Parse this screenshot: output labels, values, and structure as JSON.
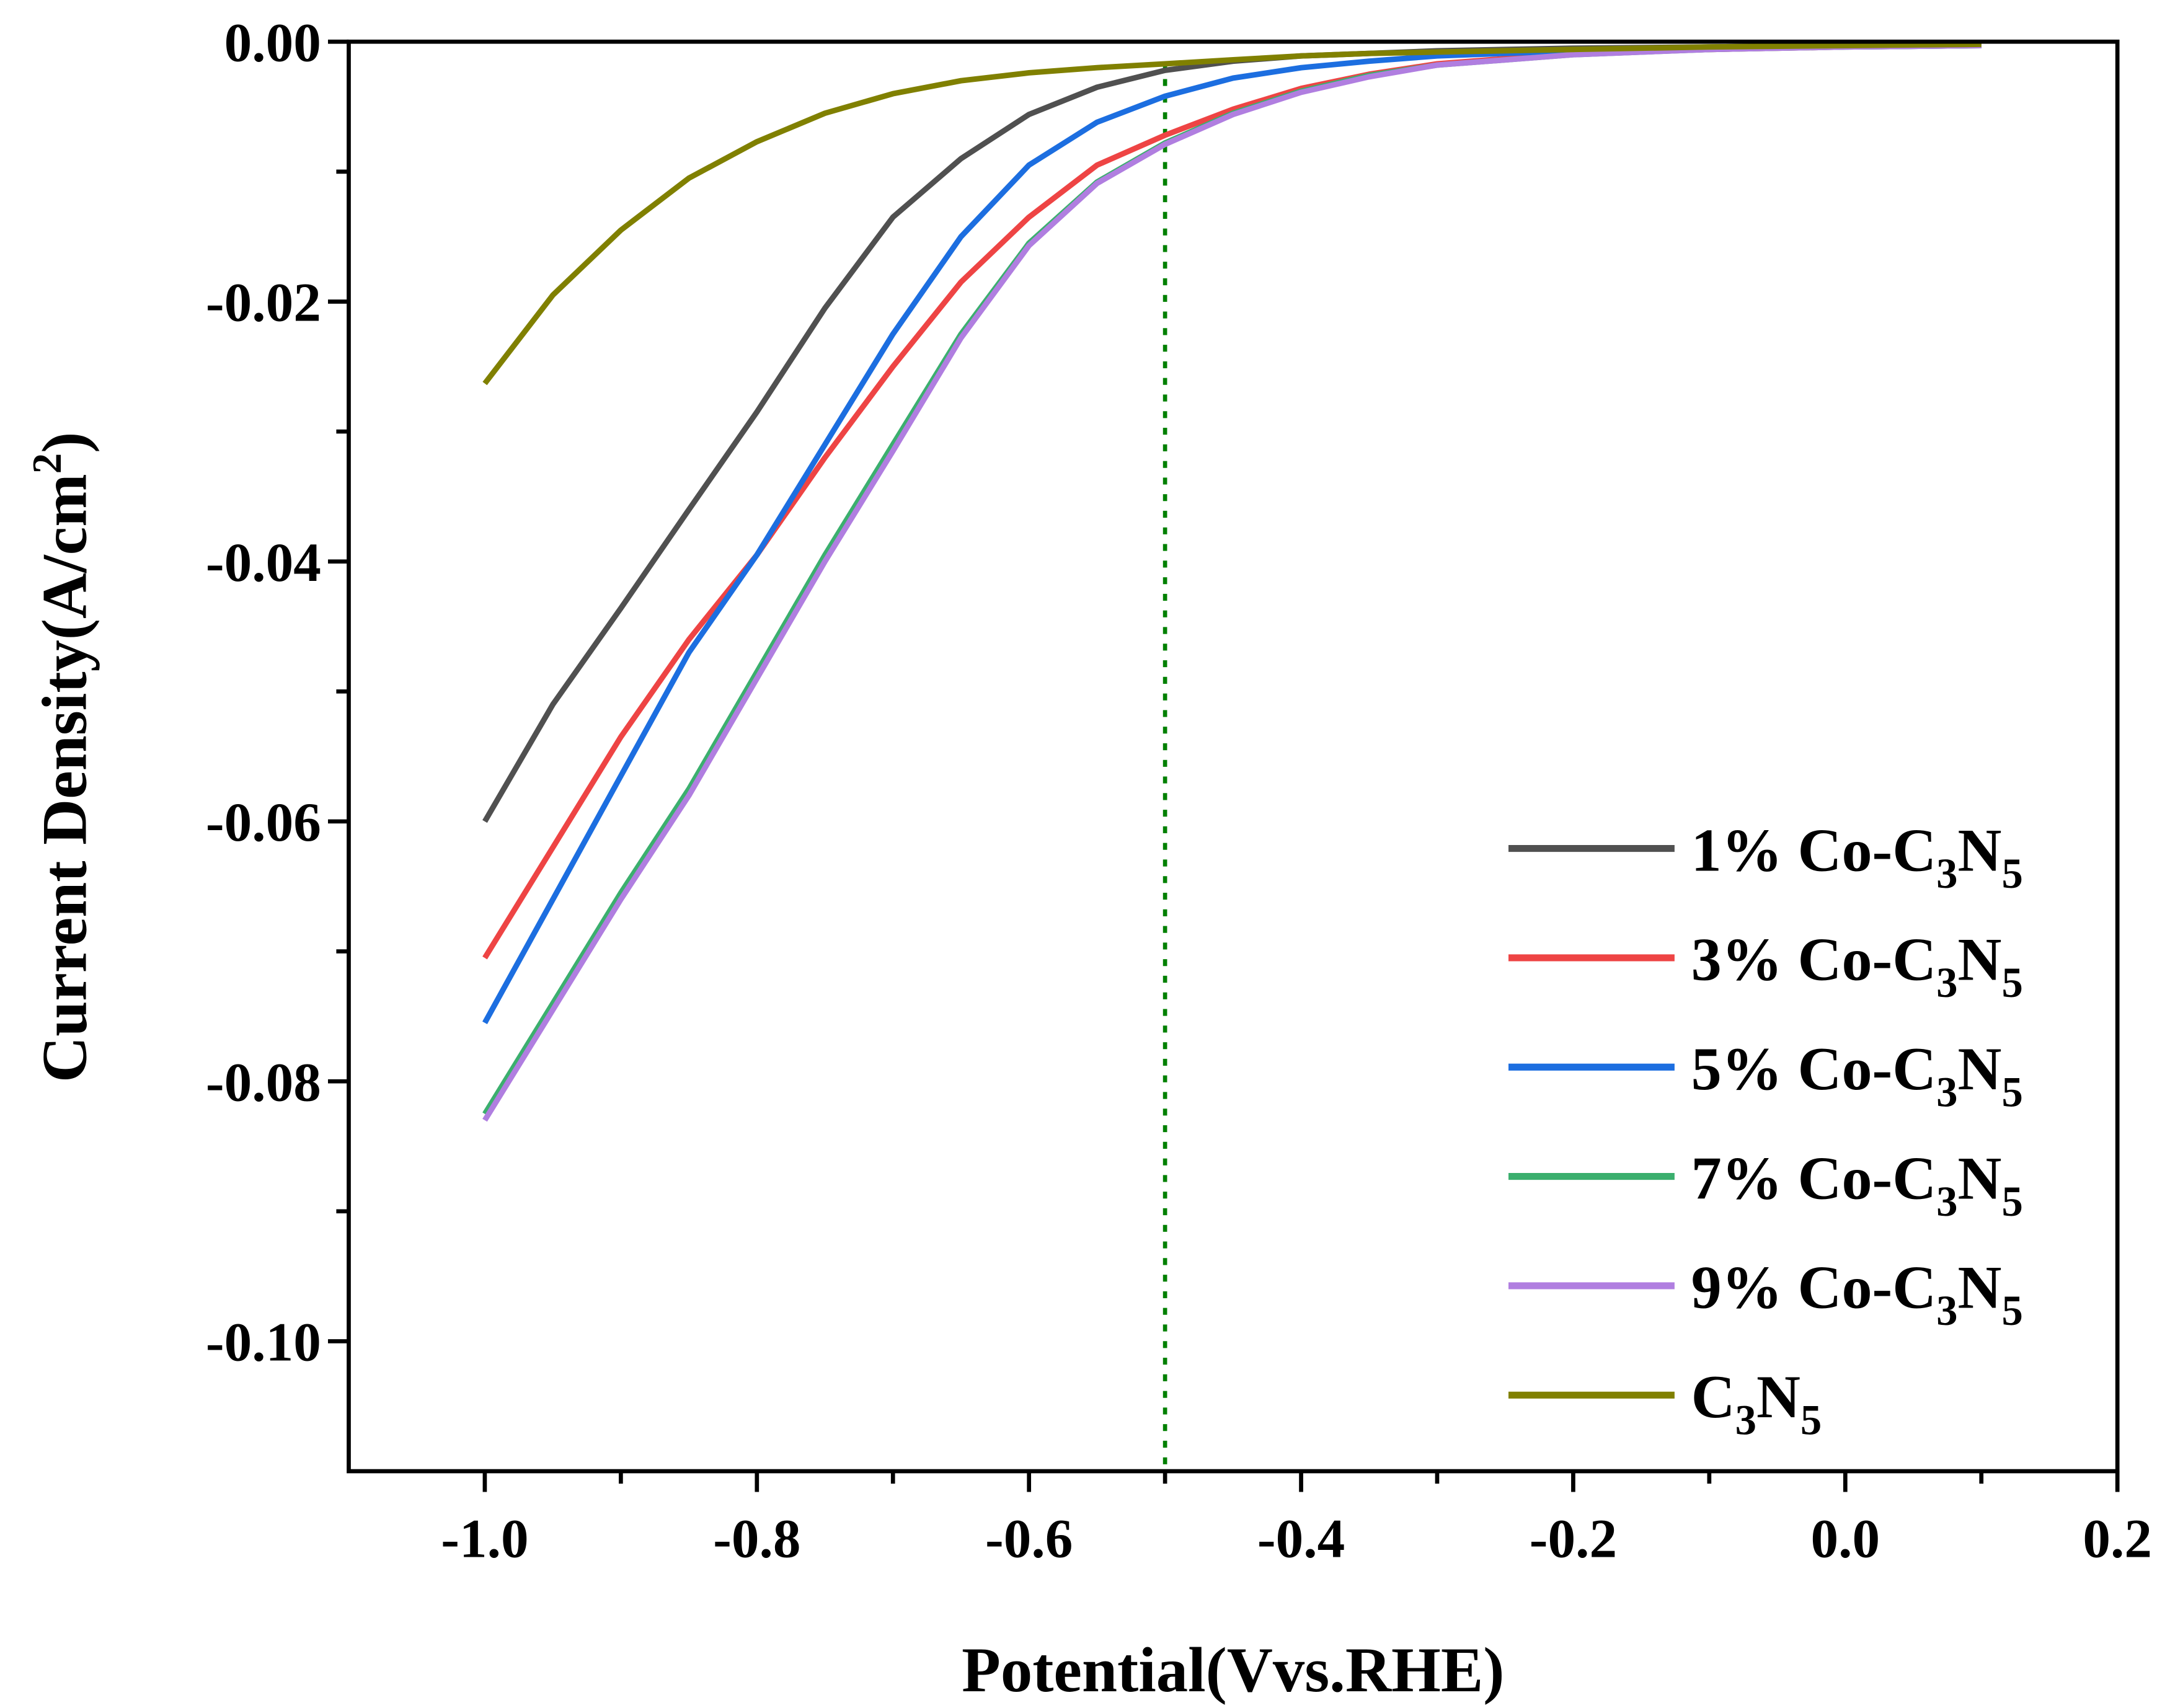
{
  "chart_data": {
    "type": "line",
    "title": "",
    "xlabel": "Potential(Vvs.RHE)",
    "ylabel": "Current Density(A/cm2)",
    "xlim": [
      -1.1,
      0.2
    ],
    "ylim": [
      -0.11,
      0.0
    ],
    "xticks": [
      "-1.0",
      "-0.8",
      "-0.6",
      "-0.4",
      "-0.2",
      "0.0",
      "0.2"
    ],
    "xtick_values": [
      -1.0,
      -0.8,
      -0.6,
      -0.4,
      -0.2,
      0.0,
      0.2
    ],
    "yticks": [
      "0.00",
      "-0.02",
      "-0.04",
      "-0.06",
      "-0.08",
      "-0.10"
    ],
    "ytick_values": [
      0.0,
      -0.02,
      -0.04,
      -0.06,
      -0.08,
      -0.1
    ],
    "legend_position": "bottom-right",
    "reference_line": {
      "x": -0.5,
      "color": "#008000",
      "style": "dotted"
    },
    "x": [
      -1.0,
      -0.95,
      -0.9,
      -0.85,
      -0.8,
      -0.75,
      -0.7,
      -0.65,
      -0.6,
      -0.55,
      -0.5,
      -0.45,
      -0.4,
      -0.35,
      -0.3,
      -0.2,
      -0.1,
      0.0,
      0.1
    ],
    "series": [
      {
        "name": "1% Co-C3N5",
        "color": "#505050",
        "values": [
          -0.06,
          -0.051,
          -0.0436,
          -0.036,
          -0.0285,
          -0.0205,
          -0.0135,
          -0.009,
          -0.0056,
          -0.0035,
          -0.0022,
          -0.0015,
          -0.0011,
          -0.0009,
          -0.0007,
          -0.0005,
          -0.0004,
          -0.0003,
          -0.0002
        ]
      },
      {
        "name": "3% Co-C3N5",
        "color": "#EE4444",
        "values": [
          -0.0705,
          -0.062,
          -0.0535,
          -0.046,
          -0.0395,
          -0.032,
          -0.025,
          -0.0185,
          -0.0135,
          -0.0095,
          -0.0072,
          -0.0052,
          -0.0036,
          -0.0025,
          -0.0017,
          -0.0009,
          -0.0006,
          -0.0004,
          -0.0003
        ]
      },
      {
        "name": "5% Co-C3N5",
        "color": "#1C6EE0",
        "values": [
          -0.0755,
          -0.066,
          -0.0565,
          -0.047,
          -0.0395,
          -0.031,
          -0.0225,
          -0.015,
          -0.0095,
          -0.0062,
          -0.0042,
          -0.0028,
          -0.002,
          -0.0015,
          -0.0011,
          -0.0007,
          -0.0005,
          -0.0004,
          -0.0003
        ]
      },
      {
        "name": "7% Co-C3N5",
        "color": "#3BAF6E",
        "values": [
          -0.0825,
          -0.074,
          -0.0655,
          -0.0575,
          -0.0485,
          -0.0395,
          -0.031,
          -0.0225,
          -0.0155,
          -0.0108,
          -0.0078,
          -0.0055,
          -0.0038,
          -0.0026,
          -0.0018,
          -0.001,
          -0.0006,
          -0.0004,
          -0.0003
        ]
      },
      {
        "name": "9% Co-C3N5",
        "color": "#B07EE0",
        "values": [
          -0.083,
          -0.0745,
          -0.066,
          -0.058,
          -0.049,
          -0.04,
          -0.0315,
          -0.0228,
          -0.0157,
          -0.0109,
          -0.0079,
          -0.0056,
          -0.0039,
          -0.0027,
          -0.0018,
          -0.001,
          -0.0006,
          -0.0004,
          -0.0003
        ]
      },
      {
        "name": "C3N5",
        "color": "#808000",
        "values": [
          -0.0263,
          -0.0195,
          -0.0145,
          -0.0105,
          -0.0077,
          -0.0055,
          -0.004,
          -0.003,
          -0.0024,
          -0.002,
          -0.0017,
          -0.0014,
          -0.0011,
          -0.0009,
          -0.0008,
          -0.0006,
          -0.0004,
          -0.0003,
          -0.0002
        ]
      }
    ]
  }
}
